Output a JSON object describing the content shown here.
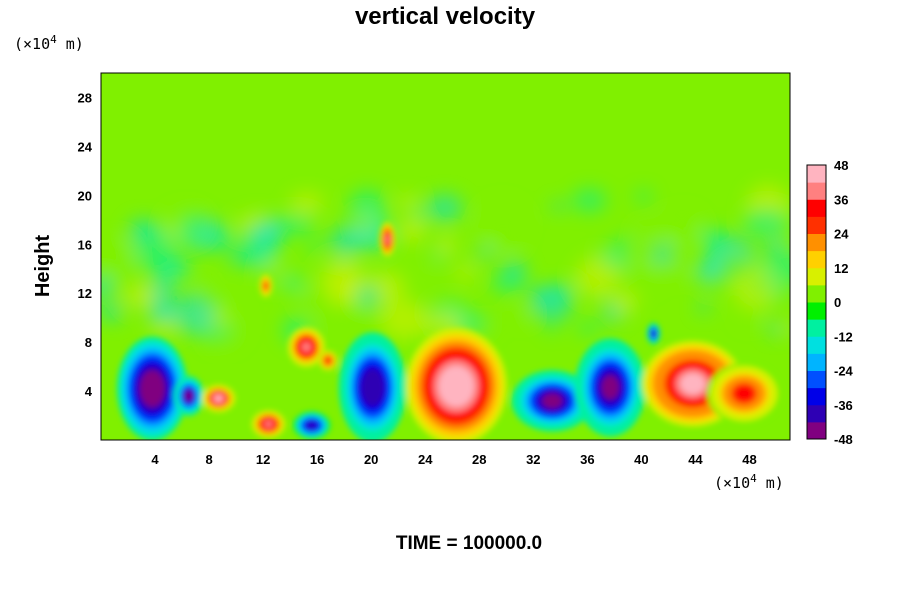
{
  "chart_data": {
    "type": "heatmap",
    "title": "vertical velocity",
    "ylabel": "Height",
    "xlabel": "",
    "x_unit": "(×10",
    "x_unit_exp": "4",
    "x_unit_tail": " m)",
    "y_unit": "(×10",
    "y_unit_exp": "4",
    "y_unit_tail": " m)",
    "xlim": [
      0,
      51
    ],
    "ylim": [
      0,
      30
    ],
    "x_ticks": [
      4,
      8,
      12,
      16,
      20,
      24,
      28,
      32,
      36,
      40,
      44,
      48
    ],
    "y_ticks": [
      4,
      8,
      12,
      16,
      20,
      24,
      28
    ],
    "colorbar": {
      "range": [
        -48,
        48
      ],
      "ticks": [
        48,
        36,
        24,
        12,
        0,
        -12,
        -24,
        -36,
        -48
      ],
      "colors": [
        "#800080",
        "#2e00b4",
        "#0000e8",
        "#0050ff",
        "#00b4ff",
        "#00e0e0",
        "#00f0a0",
        "#00f000",
        "#80f000",
        "#d8f000",
        "#ffd000",
        "#ff9000",
        "#ff3000",
        "#ff0000",
        "#ff8080",
        "#ffb4c0"
      ]
    },
    "background_value": 0,
    "features": [
      {
        "x": 3.8,
        "y": 4.2,
        "rx": 2.1,
        "ry": 3.4,
        "value": -48
      },
      {
        "x": 6.5,
        "y": 3.6,
        "rx": 0.9,
        "ry": 1.3,
        "value": -44
      },
      {
        "x": 8.7,
        "y": 3.4,
        "rx": 1.0,
        "ry": 0.9,
        "value": 42
      },
      {
        "x": 12.4,
        "y": 1.3,
        "rx": 1.0,
        "ry": 0.9,
        "value": 40
      },
      {
        "x": 15.6,
        "y": 1.2,
        "rx": 1.1,
        "ry": 0.9,
        "value": -40
      },
      {
        "x": 15.2,
        "y": 7.6,
        "rx": 1.1,
        "ry": 1.3,
        "value": 40
      },
      {
        "x": 16.8,
        "y": 6.5,
        "rx": 0.6,
        "ry": 0.7,
        "value": 30
      },
      {
        "x": 20.1,
        "y": 4.3,
        "rx": 2.0,
        "ry": 3.6,
        "value": -42
      },
      {
        "x": 26.3,
        "y": 4.4,
        "rx": 3.0,
        "ry": 3.8,
        "value": 48
      },
      {
        "x": 33.4,
        "y": 3.2,
        "rx": 2.4,
        "ry": 2.0,
        "value": -44
      },
      {
        "x": 37.7,
        "y": 4.3,
        "rx": 2.1,
        "ry": 3.2,
        "value": -44
      },
      {
        "x": 43.8,
        "y": 4.6,
        "rx": 3.0,
        "ry": 2.8,
        "value": 46
      },
      {
        "x": 47.6,
        "y": 3.8,
        "rx": 2.2,
        "ry": 2.0,
        "value": 30
      },
      {
        "x": 40.9,
        "y": 8.7,
        "rx": 0.4,
        "ry": 0.7,
        "value": -40
      },
      {
        "x": 21.2,
        "y": 16.4,
        "rx": 0.5,
        "ry": 1.2,
        "value": 36
      },
      {
        "x": 12.2,
        "y": 12.6,
        "rx": 0.4,
        "ry": 0.8,
        "value": 28
      }
    ]
  },
  "footer": {
    "time_label": "TIME = 100000.0"
  }
}
